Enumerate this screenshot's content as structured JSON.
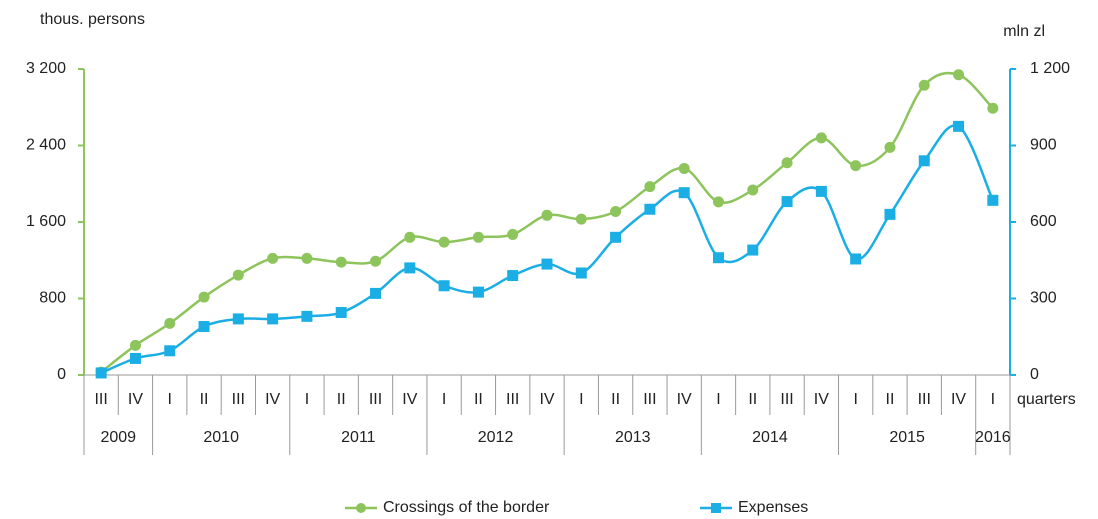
{
  "chart_data": {
    "type": "line",
    "ylabel": "thous. persons",
    "y2label": "mln zl",
    "xlabel": "quarters",
    "categories": [
      "III",
      "IV",
      "I",
      "II",
      "III",
      "IV",
      "I",
      "II",
      "III",
      "IV",
      "I",
      "II",
      "III",
      "IV",
      "I",
      "II",
      "III",
      "IV",
      "I",
      "II",
      "III",
      "IV",
      "I",
      "II",
      "III",
      "IV",
      "I"
    ],
    "years": [
      "2009",
      "2009",
      "2010",
      "2010",
      "2010",
      "2010",
      "2011",
      "2011",
      "2011",
      "2011",
      "2012",
      "2012",
      "2012",
      "2012",
      "2013",
      "2013",
      "2013",
      "2013",
      "2014",
      "2014",
      "2014",
      "2014",
      "2015",
      "2015",
      "2015",
      "2015",
      "2016"
    ],
    "series": [
      {
        "name": "Crossings of the border",
        "color": "#8dc45c",
        "marker": "circle",
        "axis": "y",
        "values": [
          30,
          310,
          540,
          815,
          1045,
          1220,
          1220,
          1180,
          1190,
          1440,
          1390,
          1440,
          1470,
          1670,
          1630,
          1710,
          1970,
          2160,
          1810,
          1935,
          2220,
          2480,
          2190,
          2380,
          3030,
          3140,
          2790
        ]
      },
      {
        "name": "Expenses",
        "color": "#1aaee5",
        "marker": "square",
        "axis": "y2",
        "values": [
          8,
          65,
          95,
          190,
          220,
          220,
          230,
          245,
          320,
          420,
          350,
          325,
          390,
          435,
          400,
          540,
          650,
          715,
          460,
          490,
          680,
          720,
          455,
          630,
          840,
          975,
          685
        ]
      }
    ],
    "ylim": [
      0,
      3200
    ],
    "yticks": [
      0,
      800,
      {
        "value": 1600,
        "label": "1 600"
      },
      {
        "value": 2400,
        "label": "2 400"
      },
      {
        "value": 3200,
        "label": "3 200"
      }
    ],
    "y2lim": [
      0,
      1200
    ],
    "y2ticks": [
      0,
      300,
      600,
      900,
      {
        "value": 1200,
        "label": "1 200"
      }
    ],
    "legend": "bottom",
    "smooth": true,
    "grid": false
  }
}
